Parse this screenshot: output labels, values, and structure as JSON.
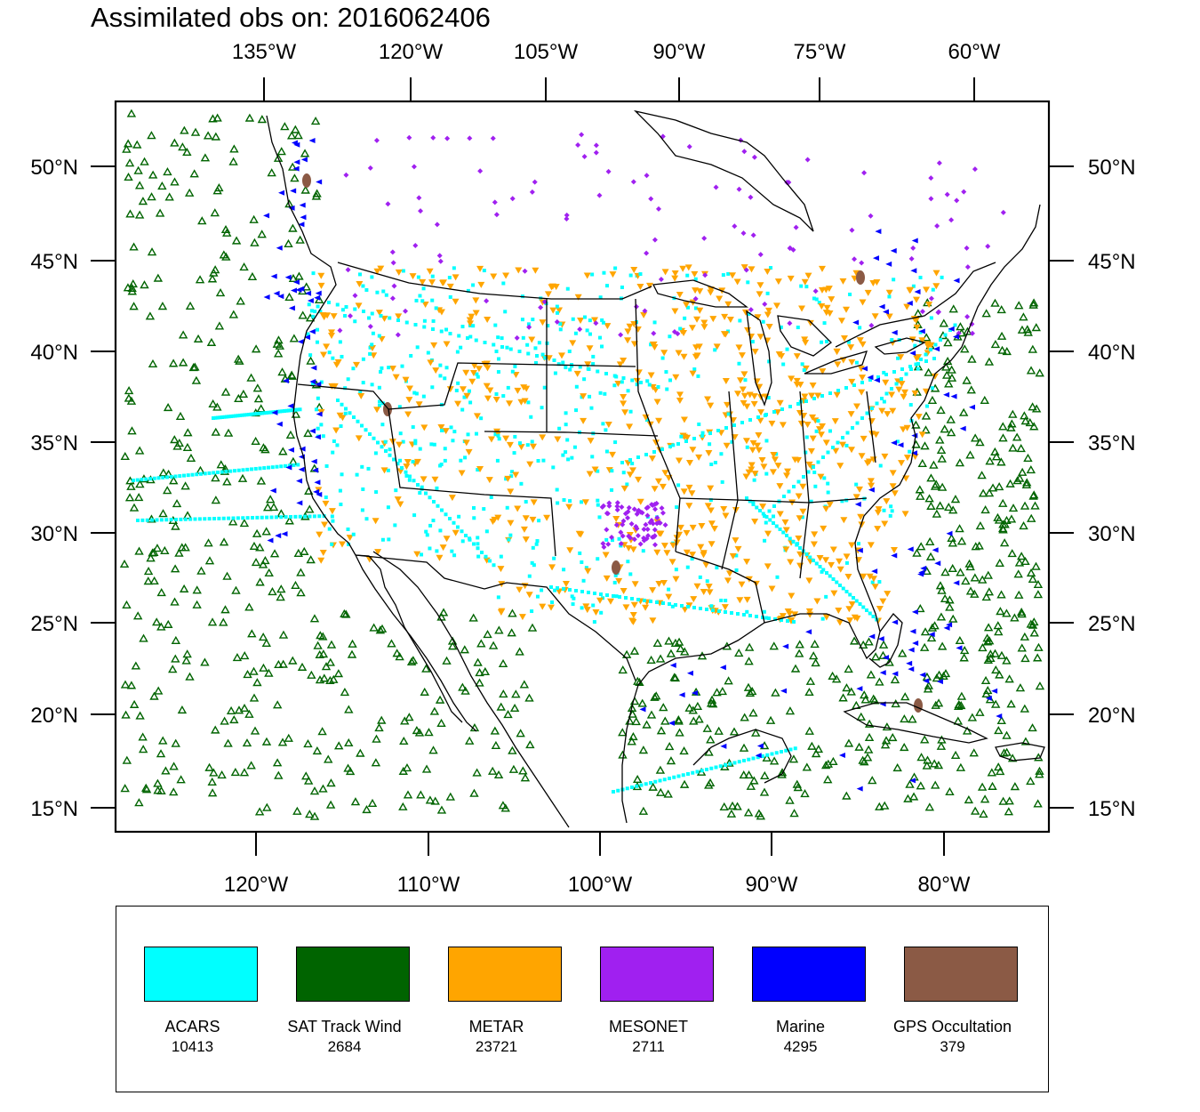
{
  "title": "Assimilated obs on: 2016062406",
  "map": {
    "projection": "lambert-conformal",
    "extent": {
      "lon": [
        -129,
        -53
      ],
      "lat": [
        13,
        55
      ]
    },
    "top_lon_ticks": [
      "135°W",
      "120°W",
      "105°W",
      "90°W",
      "75°W",
      "60°W"
    ],
    "bottom_lon_ticks": [
      "120°W",
      "110°W",
      "100°W",
      "90°W",
      "80°W"
    ],
    "lat_ticks_left": [
      "50°N",
      "45°N",
      "40°N",
      "35°N",
      "30°N",
      "25°N",
      "20°N",
      "15°N"
    ],
    "lat_ticks_right": [
      "50°N",
      "45°N",
      "40°N",
      "35°N",
      "30°N",
      "25°N",
      "20°N",
      "15°N"
    ],
    "background": "#ffffff",
    "coastline_color": "#000000"
  },
  "legend": {
    "items": [
      {
        "name": "ACARS",
        "count": "10413",
        "color": "#00ffff",
        "marker": "square"
      },
      {
        "name": "SAT Track Wind",
        "count": "2684",
        "color": "#006400",
        "marker": "triangle-up-open"
      },
      {
        "name": "METAR",
        "count": "23721",
        "color": "#ffa500",
        "marker": "triangle-down"
      },
      {
        "name": "MESONET",
        "count": "2711",
        "color": "#a020f0",
        "marker": "diamond"
      },
      {
        "name": "Marine",
        "count": "4295",
        "color": "#0000ff",
        "marker": "triangle-left"
      },
      {
        "name": "GPS Occultation",
        "count": "379",
        "color": "#8b5a45",
        "marker": "ellipse"
      }
    ]
  }
}
